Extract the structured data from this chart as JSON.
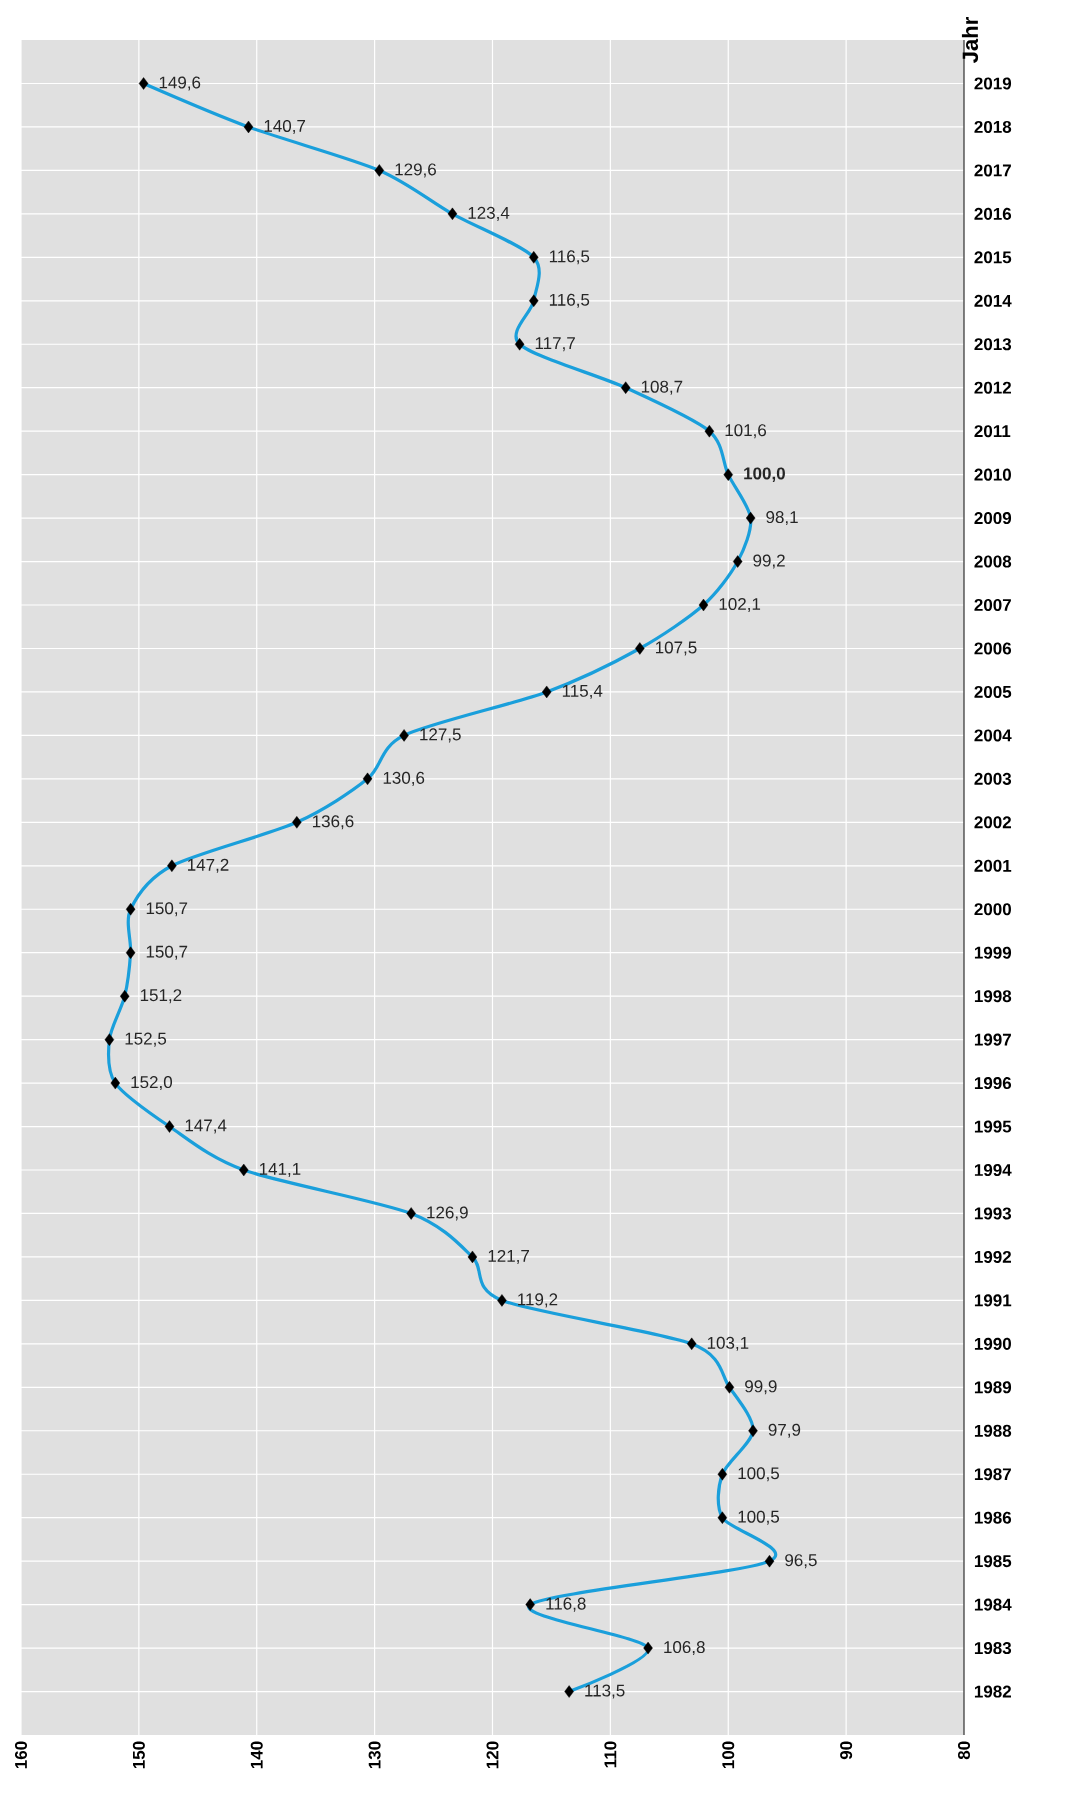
{
  "chart_data": {
    "type": "line",
    "orientation": "horizontal",
    "ylabel": "Jahr",
    "categories": [
      "2019",
      "2018",
      "2017",
      "2016",
      "2015",
      "2014",
      "2013",
      "2012",
      "2011",
      "2010",
      "2009",
      "2008",
      "2007",
      "2006",
      "2005",
      "2004",
      "2003",
      "2002",
      "2001",
      "2000",
      "1999",
      "1998",
      "1997",
      "1996",
      "1995",
      "1994",
      "1993",
      "1992",
      "1991",
      "1990",
      "1989",
      "1988",
      "1987",
      "1986",
      "1985",
      "1984",
      "1983",
      "1982"
    ],
    "values": [
      149.6,
      140.7,
      129.6,
      123.4,
      116.5,
      116.5,
      117.7,
      108.7,
      101.6,
      100.0,
      98.1,
      99.2,
      102.1,
      107.5,
      115.4,
      127.5,
      130.6,
      136.6,
      147.2,
      150.7,
      150.7,
      151.2,
      152.5,
      152.0,
      147.4,
      141.1,
      126.9,
      121.7,
      119.2,
      103.1,
      99.9,
      97.9,
      100.5,
      100.5,
      96.5,
      116.8,
      106.8,
      113.5
    ],
    "value_labels": [
      "149,6",
      "140,7",
      "129,6",
      "123,4",
      "116,5",
      "116,5",
      "117,7",
      "108,7",
      "101,6",
      "**100,0**",
      "98,1",
      "99,2",
      "102,1",
      "107,5",
      "115,4",
      "127,5",
      "130,6",
      "136,6",
      "147,2",
      "150,7",
      "150,7",
      "151,2",
      "152,5",
      "152,0",
      "147,4",
      "141,1",
      "126,9",
      "121,7",
      "119,2",
      "103,1",
      "99,9",
      "97,9",
      "100,5",
      "100,5",
      "96,5",
      "116,8",
      "106,8",
      "113,5"
    ],
    "color": "#1a9fdb",
    "marker": "diamond",
    "line_style": "solid",
    "grid": true,
    "xlim": [
      160,
      80
    ],
    "xticks": [
      160,
      150,
      140,
      130,
      120,
      110,
      100,
      90,
      80
    ]
  }
}
